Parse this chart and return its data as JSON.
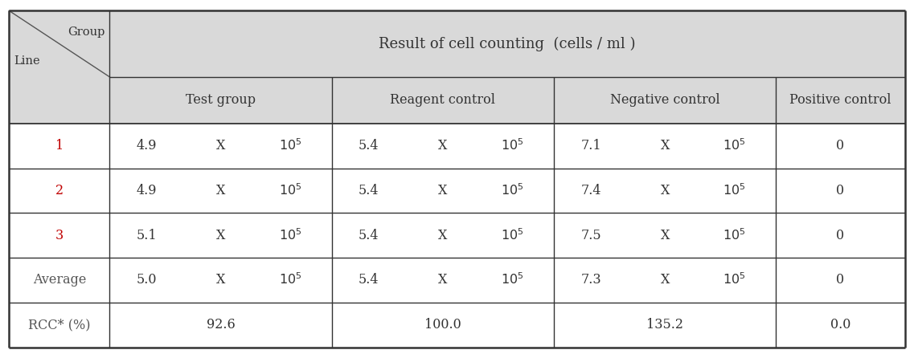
{
  "title": "Result of cell counting  (cells / ml )",
  "header_bg": "#d9d9d9",
  "body_bg": "#ffffff",
  "text_color": "#333333",
  "red_color": "#c00000",
  "col_groups": [
    "Test group",
    "Reagent control",
    "Negative control",
    "Positive control"
  ],
  "row_labels": [
    "1",
    "2",
    "3",
    "Average",
    "RCC* (%)"
  ],
  "row_label_color": [
    "#c00000",
    "#c00000",
    "#c00000",
    "#555555",
    "#555555"
  ],
  "data": [
    [
      "4.9",
      "X",
      "10^5",
      "5.4",
      "X",
      "10^5",
      "7.1",
      "X",
      "10^5",
      "0"
    ],
    [
      "4.9",
      "X",
      "10^5",
      "5.4",
      "X",
      "10^5",
      "7.4",
      "X",
      "10^5",
      "0"
    ],
    [
      "5.1",
      "X",
      "10^5",
      "5.4",
      "X",
      "10^5",
      "7.5",
      "X",
      "10^5",
      "0"
    ],
    [
      "5.0",
      "X",
      "10^5",
      "5.4",
      "X",
      "10^5",
      "7.3",
      "X",
      "10^5",
      "0"
    ],
    [
      "92.6",
      null,
      null,
      "100.0",
      null,
      null,
      "135.2",
      null,
      null,
      "0.0"
    ]
  ],
  "figsize": [
    11.37,
    4.46
  ],
  "dpi": 100
}
